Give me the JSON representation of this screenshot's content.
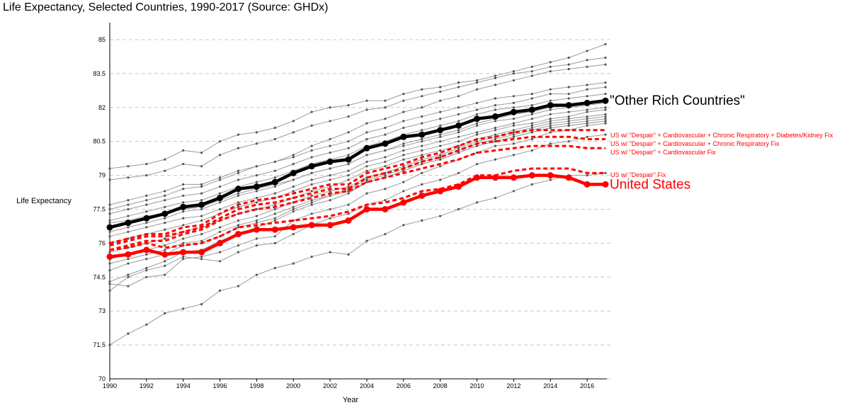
{
  "title": "Life Expectancy, Selected Countries, 1990-2017 (Source: GHDx)",
  "chart_data": {
    "type": "line",
    "title": "Life Expectancy, Selected Countries, 1990-2017 (Source: GHDx)",
    "xlabel": "Year",
    "ylabel": "Life Expectancy",
    "xlim": [
      1990,
      2017
    ],
    "ylim": [
      70,
      85.5
    ],
    "x_ticks": [
      "1990",
      "1992",
      "1994",
      "1996",
      "1998",
      "2000",
      "2002",
      "2004",
      "2006",
      "2008",
      "2010",
      "2012",
      "2014",
      "2016"
    ],
    "y_ticks": [
      "70",
      "71.5",
      "73",
      "74.5",
      "76",
      "77.5",
      "79",
      "80.5",
      "82",
      "83.5",
      "85"
    ],
    "grid": "horizontal dashed",
    "x": [
      1990,
      1991,
      1992,
      1993,
      1994,
      1995,
      1996,
      1997,
      1998,
      1999,
      2000,
      2001,
      2002,
      2003,
      2004,
      2005,
      2006,
      2007,
      2008,
      2009,
      2010,
      2011,
      2012,
      2013,
      2014,
      2015,
      2016,
      2017
    ],
    "highlight_series": [
      {
        "name": "\"Other Rich Countries\"",
        "color": "#000000",
        "style": "solid-bold-markers",
        "values": [
          76.7,
          76.9,
          77.1,
          77.3,
          77.6,
          77.7,
          78.0,
          78.4,
          78.5,
          78.7,
          79.1,
          79.4,
          79.6,
          79.7,
          80.2,
          80.4,
          80.7,
          80.8,
          81.0,
          81.2,
          81.5,
          81.6,
          81.8,
          81.9,
          82.1,
          82.1,
          82.2,
          82.3
        ]
      },
      {
        "name": "US w/ \"Despair\" + Cardiovascular + Chronic Respiratory + Diabetes/Kidney Fix",
        "color": "#ff0000",
        "style": "dashed",
        "values": [
          76.0,
          76.2,
          76.4,
          76.4,
          76.7,
          76.8,
          77.3,
          77.7,
          77.9,
          78.0,
          78.2,
          78.4,
          78.6,
          78.6,
          79.1,
          79.3,
          79.5,
          79.8,
          80.0,
          80.3,
          80.6,
          80.7,
          80.9,
          81.0,
          81.0,
          81.0,
          81.0,
          81.0
        ]
      },
      {
        "name": "US w/ \"Despair\" + Cardiovascular + Chronic Respiratory Fix",
        "color": "#ff0000",
        "style": "dashed",
        "values": [
          75.9,
          76.1,
          76.3,
          76.3,
          76.5,
          76.7,
          77.1,
          77.5,
          77.7,
          77.8,
          78.0,
          78.2,
          78.4,
          78.4,
          78.9,
          79.1,
          79.3,
          79.6,
          79.8,
          80.1,
          80.4,
          80.5,
          80.6,
          80.7,
          80.7,
          80.7,
          80.6,
          80.6
        ]
      },
      {
        "name": "US w/ \"Despair\" + Cardiovascular Fix",
        "color": "#ff0000",
        "style": "dashed",
        "values": [
          75.7,
          75.9,
          76.1,
          76.1,
          76.4,
          76.6,
          77.0,
          77.3,
          77.5,
          77.6,
          77.8,
          78.0,
          78.2,
          78.3,
          78.7,
          78.9,
          79.1,
          79.3,
          79.5,
          79.7,
          80.0,
          80.1,
          80.2,
          80.3,
          80.3,
          80.3,
          80.2,
          80.2
        ]
      },
      {
        "name": "US w/ \"Despair\" Fix",
        "color": "#ff0000",
        "style": "dashed",
        "values": [
          75.7,
          75.8,
          76.0,
          75.8,
          75.9,
          76.0,
          76.3,
          76.7,
          76.8,
          76.9,
          77.0,
          77.1,
          77.2,
          77.4,
          77.7,
          77.8,
          78.0,
          78.3,
          78.4,
          78.6,
          79.0,
          79.0,
          79.2,
          79.3,
          79.3,
          79.3,
          79.1,
          79.1
        ]
      },
      {
        "name": "United States",
        "color": "#ff0000",
        "style": "solid-bold-markers",
        "values": [
          75.4,
          75.5,
          75.7,
          75.5,
          75.6,
          75.6,
          76.0,
          76.4,
          76.6,
          76.6,
          76.7,
          76.8,
          76.8,
          77.0,
          77.5,
          77.5,
          77.8,
          78.1,
          78.3,
          78.5,
          78.9,
          78.9,
          78.9,
          79.0,
          79.0,
          78.9,
          78.6,
          78.6
        ]
      }
    ],
    "background_series": [
      {
        "color": "#9a9a9a",
        "values": [
          79.3,
          79.4,
          79.5,
          79.7,
          80.1,
          80.0,
          80.5,
          80.8,
          80.9,
          81.1,
          81.4,
          81.8,
          82.0,
          82.1,
          82.3,
          82.3,
          82.6,
          82.8,
          82.9,
          83.1,
          83.2,
          83.4,
          83.6,
          83.8,
          84.0,
          84.2,
          84.5,
          84.8
        ]
      },
      {
        "color": "#9a9a9a",
        "values": [
          78.8,
          78.9,
          79.0,
          79.2,
          79.5,
          79.4,
          79.9,
          80.2,
          80.4,
          80.6,
          80.9,
          81.2,
          81.4,
          81.6,
          81.9,
          82.0,
          82.3,
          82.5,
          82.7,
          82.9,
          83.1,
          83.3,
          83.5,
          83.6,
          83.8,
          83.9,
          84.1,
          84.2
        ]
      },
      {
        "color": "#9a9a9a",
        "values": [
          77.5,
          77.7,
          77.9,
          78.1,
          78.4,
          78.5,
          78.8,
          79.1,
          79.4,
          79.6,
          79.9,
          80.3,
          80.6,
          80.9,
          81.3,
          81.5,
          81.8,
          82.0,
          82.3,
          82.5,
          82.8,
          83.0,
          83.2,
          83.4,
          83.6,
          83.7,
          83.8,
          83.9
        ]
      },
      {
        "color": "#9a9a9a",
        "values": [
          77.7,
          77.9,
          78.1,
          78.3,
          78.6,
          78.6,
          78.9,
          79.2,
          79.4,
          79.6,
          79.8,
          80.1,
          80.3,
          80.5,
          80.9,
          81.1,
          81.4,
          81.6,
          81.8,
          82.0,
          82.2,
          82.4,
          82.5,
          82.6,
          82.8,
          82.9,
          83.0,
          83.1
        ]
      },
      {
        "color": "#9a9a9a",
        "values": [
          77.3,
          77.5,
          77.7,
          77.9,
          78.1,
          78.2,
          78.5,
          78.8,
          79.0,
          79.2,
          79.5,
          79.8,
          80.0,
          80.2,
          80.6,
          80.8,
          81.1,
          81.3,
          81.5,
          81.7,
          81.9,
          82.1,
          82.2,
          82.4,
          82.6,
          82.6,
          82.8,
          82.9
        ]
      },
      {
        "color": "#9a9a9a",
        "values": [
          77.0,
          77.2,
          77.4,
          77.6,
          77.8,
          77.9,
          78.2,
          78.5,
          78.7,
          78.9,
          79.2,
          79.5,
          79.7,
          79.9,
          80.3,
          80.5,
          80.8,
          81.0,
          81.2,
          81.4,
          81.7,
          81.9,
          82.0,
          82.1,
          82.3,
          82.4,
          82.5,
          82.6
        ]
      },
      {
        "color": "#9a9a9a",
        "values": [
          76.9,
          77.0,
          77.2,
          77.3,
          77.5,
          77.6,
          77.9,
          78.2,
          78.4,
          78.6,
          78.8,
          79.1,
          79.3,
          79.5,
          79.9,
          80.1,
          80.4,
          80.6,
          80.8,
          81.0,
          81.3,
          81.5,
          81.7,
          81.8,
          82.0,
          82.1,
          82.2,
          82.3
        ]
      },
      {
        "color": "#9a9a9a",
        "values": [
          76.5,
          76.7,
          76.9,
          77.1,
          77.4,
          77.5,
          77.8,
          78.1,
          78.3,
          78.5,
          78.8,
          79.1,
          79.3,
          79.5,
          79.9,
          80.1,
          80.3,
          80.5,
          80.7,
          80.9,
          81.2,
          81.4,
          81.5,
          81.7,
          81.9,
          82.0,
          82.1,
          82.2
        ]
      },
      {
        "color": "#9a9a9a",
        "values": [
          76.3,
          76.5,
          76.7,
          76.9,
          77.1,
          77.2,
          77.5,
          77.8,
          78.0,
          78.2,
          78.5,
          78.8,
          79.0,
          79.2,
          79.6,
          79.8,
          80.1,
          80.3,
          80.5,
          80.7,
          80.9,
          81.1,
          81.3,
          81.5,
          81.7,
          81.8,
          81.9,
          82.0
        ]
      },
      {
        "color": "#9a9a9a",
        "values": [
          76.0,
          76.2,
          76.4,
          76.6,
          76.8,
          77.0,
          77.3,
          77.6,
          77.8,
          78.0,
          78.3,
          78.6,
          78.8,
          79.0,
          79.4,
          79.6,
          79.9,
          80.1,
          80.3,
          80.5,
          80.8,
          81.0,
          81.2,
          81.3,
          81.5,
          81.6,
          81.8,
          81.9
        ]
      },
      {
        "color": "#9a9a9a",
        "values": [
          75.6,
          75.8,
          76.0,
          76.2,
          76.5,
          76.7,
          77.0,
          77.3,
          77.5,
          77.7,
          78.0,
          78.3,
          78.5,
          78.8,
          79.2,
          79.4,
          79.7,
          79.9,
          80.1,
          80.3,
          80.6,
          80.8,
          81.0,
          81.2,
          81.4,
          81.5,
          81.6,
          81.7
        ]
      },
      {
        "color": "#9a9a9a",
        "values": [
          75.3,
          75.5,
          75.7,
          75.9,
          76.2,
          76.4,
          76.7,
          77.0,
          77.2,
          77.5,
          77.8,
          78.1,
          78.3,
          78.5,
          78.9,
          79.1,
          79.4,
          79.7,
          79.9,
          80.2,
          80.5,
          80.7,
          80.9,
          81.1,
          81.3,
          81.4,
          81.5,
          81.6
        ]
      },
      {
        "color": "#9a9a9a",
        "values": [
          75.1,
          75.3,
          75.5,
          75.7,
          76.0,
          76.1,
          76.5,
          76.8,
          77.0,
          77.3,
          77.6,
          77.9,
          78.1,
          78.4,
          78.8,
          79.0,
          79.3,
          79.6,
          79.8,
          80.1,
          80.4,
          80.6,
          80.8,
          81.0,
          81.2,
          81.3,
          81.4,
          81.5
        ]
      },
      {
        "color": "#9a9a9a",
        "values": [
          74.8,
          75.1,
          75.3,
          75.5,
          75.9,
          76.0,
          76.3,
          76.7,
          76.9,
          77.1,
          77.5,
          77.8,
          78.1,
          78.3,
          78.7,
          78.9,
          79.2,
          79.5,
          79.7,
          80.0,
          80.3,
          80.5,
          80.7,
          80.9,
          81.1,
          81.2,
          81.3,
          81.4
        ]
      },
      {
        "color": "#9a9a9a",
        "values": [
          74.3,
          74.6,
          74.9,
          75.2,
          75.6,
          75.7,
          76.1,
          76.4,
          76.7,
          77.0,
          77.4,
          77.7,
          77.9,
          78.2,
          78.7,
          78.9,
          79.2,
          79.5,
          79.7,
          80.0,
          80.3,
          80.5,
          80.7,
          80.9,
          81.1,
          81.2,
          81.3,
          81.4
        ]
      },
      {
        "color": "#9a9a9a",
        "values": [
          74.2,
          74.1,
          74.5,
          74.6,
          75.3,
          75.4,
          75.6,
          75.9,
          76.2,
          76.3,
          77.0,
          77.3,
          77.5,
          77.7,
          78.2,
          78.4,
          78.7,
          79.1,
          79.4,
          79.7,
          80.0,
          80.3,
          80.4,
          80.6,
          80.9,
          81.0,
          81.2,
          81.3
        ]
      },
      {
        "color": "#9a9a9a",
        "values": [
          73.9,
          74.5,
          74.8,
          75.0,
          75.4,
          75.3,
          75.2,
          75.6,
          75.9,
          76.0,
          76.4,
          76.8,
          77.1,
          77.3,
          77.7,
          77.9,
          78.3,
          78.6,
          78.8,
          79.1,
          79.5,
          79.7,
          79.9,
          80.1,
          80.4,
          80.5,
          80.7,
          80.8
        ]
      },
      {
        "color": "#9a9a9a",
        "values": [
          71.5,
          72.0,
          72.4,
          72.9,
          73.1,
          73.3,
          73.9,
          74.1,
          74.6,
          74.9,
          75.1,
          75.4,
          75.6,
          75.5,
          76.1,
          76.4,
          76.8,
          77.0,
          77.2,
          77.5,
          77.8,
          78.0,
          78.3,
          78.6,
          78.8,
          79.0,
          79.0,
          79.1
        ]
      }
    ]
  }
}
